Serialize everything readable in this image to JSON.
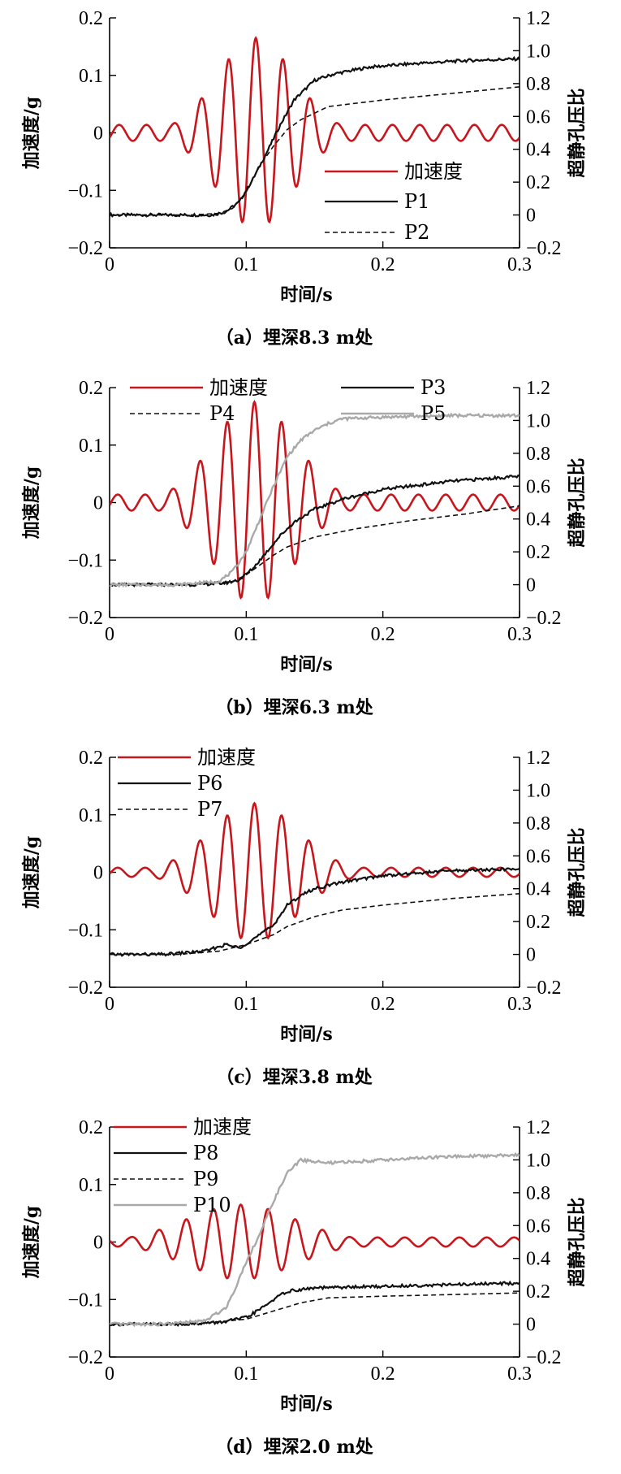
{
  "colors": {
    "acceleration": "#c8161d",
    "solid": "#111111",
    "dashed": "#111111",
    "gray": "#a9a9a9"
  },
  "chart_data": [
    {
      "type": "line",
      "caption": "（a）埋深8.3 m处",
      "xlabel": "时间/s",
      "ylabel_left": "加速度/g",
      "ylabel_right": "超静孔压比",
      "xlim": [
        0,
        0.3
      ],
      "ylim_left": [
        -0.2,
        0.2
      ],
      "ylim_right": [
        -0.2,
        1.2
      ],
      "x_ticks": [
        "0",
        "0.1",
        "0.2",
        "0.3"
      ],
      "y_left_ticks": [
        "0.2",
        "0.1",
        "0",
        "-0.1",
        "-0.2"
      ],
      "y_right_ticks": [
        "1.2",
        "1.0",
        "0.8",
        "0.6",
        "0.4",
        "0.2",
        "0",
        "-0.2"
      ],
      "acceleration": {
        "name": "加速度",
        "peak": 0.165,
        "peak_time": 0.107,
        "freq": 50,
        "sigma": 0.028,
        "baseline": 0.014,
        "side": "left"
      },
      "series": [
        {
          "name": "P1",
          "style": "solid",
          "side": "right",
          "x": [
            0,
            0.05,
            0.075,
            0.085,
            0.095,
            0.105,
            0.115,
            0.125,
            0.135,
            0.145,
            0.15,
            0.165,
            0.19,
            0.22,
            0.26,
            0.3
          ],
          "y": [
            0,
            0,
            0,
            0.02,
            0.08,
            0.22,
            0.38,
            0.55,
            0.7,
            0.78,
            0.82,
            0.86,
            0.9,
            0.92,
            0.94,
            0.95
          ]
        },
        {
          "name": "P2",
          "style": "dashed",
          "side": "right",
          "x": [
            0,
            0.06,
            0.08,
            0.09,
            0.1,
            0.11,
            0.12,
            0.13,
            0.14,
            0.15,
            0.16,
            0.2,
            0.25,
            0.3
          ],
          "y": [
            0,
            0,
            0.01,
            0.04,
            0.14,
            0.3,
            0.42,
            0.52,
            0.58,
            0.62,
            0.66,
            0.7,
            0.74,
            0.78
          ]
        }
      ],
      "legend": [
        {
          "name": "加速度",
          "style": "accel"
        },
        {
          "name": "P1",
          "style": "solid"
        },
        {
          "name": "P2",
          "style": "dashed"
        }
      ]
    },
    {
      "type": "line",
      "caption": "（b）埋深6.3 m处",
      "xlabel": "时间/s",
      "ylabel_left": "加速度/g",
      "ylabel_right": "超静孔压比",
      "xlim": [
        0,
        0.3
      ],
      "ylim_left": [
        -0.2,
        0.2
      ],
      "ylim_right": [
        -0.2,
        1.2
      ],
      "x_ticks": [
        "0",
        "0.1",
        "0.2",
        "0.3"
      ],
      "y_left_ticks": [
        "0.2",
        "0.1",
        "0",
        "-0.1",
        "-0.2"
      ],
      "y_right_ticks": [
        "1.2",
        "1.0",
        "0.8",
        "0.6",
        "0.4",
        "0.2",
        "0",
        "-0.2"
      ],
      "acceleration": {
        "name": "加速度",
        "peak": 0.175,
        "peak_time": 0.106,
        "freq": 50,
        "sigma": 0.03,
        "baseline": 0.014,
        "side": "left"
      },
      "series": [
        {
          "name": "P3",
          "style": "solid",
          "side": "right",
          "x": [
            0,
            0.06,
            0.085,
            0.095,
            0.105,
            0.115,
            0.125,
            0.135,
            0.15,
            0.17,
            0.2,
            0.25,
            0.3
          ],
          "y": [
            0,
            0,
            0.01,
            0.03,
            0.1,
            0.2,
            0.3,
            0.38,
            0.46,
            0.52,
            0.58,
            0.63,
            0.66
          ]
        },
        {
          "name": "P4",
          "style": "dashed",
          "side": "right",
          "x": [
            0,
            0.06,
            0.09,
            0.1,
            0.11,
            0.12,
            0.13,
            0.15,
            0.18,
            0.22,
            0.26,
            0.3
          ],
          "y": [
            0,
            0,
            0.02,
            0.06,
            0.12,
            0.18,
            0.23,
            0.29,
            0.34,
            0.39,
            0.43,
            0.48
          ]
        },
        {
          "name": "P5",
          "style": "gray",
          "side": "right",
          "x": [
            0,
            0.05,
            0.08,
            0.09,
            0.1,
            0.11,
            0.12,
            0.13,
            0.14,
            0.15,
            0.16,
            0.17,
            0.2,
            0.25,
            0.3
          ],
          "y": [
            0,
            0,
            0.02,
            0.08,
            0.2,
            0.4,
            0.6,
            0.78,
            0.88,
            0.94,
            0.98,
            1.01,
            1.02,
            1.03,
            1.03
          ]
        }
      ],
      "legend": [
        {
          "name": "加速度",
          "style": "accel"
        },
        {
          "name": "P3",
          "style": "solid"
        },
        {
          "name": "P4",
          "style": "dashed"
        },
        {
          "name": "P5",
          "style": "gray"
        }
      ]
    },
    {
      "type": "line",
      "caption": "（c）埋深3.8 m处",
      "xlabel": "时间/s",
      "ylabel_left": "加速度/g",
      "ylabel_right": "超静孔压比",
      "xlim": [
        0,
        0.3
      ],
      "ylim_left": [
        -0.2,
        0.2
      ],
      "ylim_right": [
        -0.2,
        1.2
      ],
      "x_ticks": [
        "0",
        "0.1",
        "0.2",
        "0.3"
      ],
      "y_left_ticks": [
        "0.2",
        "0.1",
        "0",
        "-0.1",
        "-0.2"
      ],
      "y_right_ticks": [
        "1.2",
        "1.0",
        "0.8",
        "0.6",
        "0.4",
        "0.2",
        "0",
        "-0.2"
      ],
      "acceleration": {
        "name": "加速度",
        "peak": 0.12,
        "peak_time": 0.106,
        "freq": 50,
        "sigma": 0.032,
        "baseline": 0.008,
        "side": "left"
      },
      "series": [
        {
          "name": "P6",
          "style": "solid",
          "side": "right",
          "x": [
            0,
            0.04,
            0.07,
            0.085,
            0.095,
            0.11,
            0.12,
            0.13,
            0.14,
            0.15,
            0.17,
            0.2,
            0.25,
            0.3
          ],
          "y": [
            0,
            0,
            0.02,
            0.06,
            0.04,
            0.12,
            0.18,
            0.3,
            0.36,
            0.4,
            0.44,
            0.48,
            0.51,
            0.52
          ]
        },
        {
          "name": "P7",
          "style": "dashed",
          "side": "right",
          "x": [
            0,
            0.05,
            0.08,
            0.1,
            0.12,
            0.13,
            0.15,
            0.17,
            0.2,
            0.25,
            0.3
          ],
          "y": [
            0,
            0,
            0.02,
            0.06,
            0.12,
            0.17,
            0.23,
            0.27,
            0.3,
            0.34,
            0.37
          ]
        }
      ],
      "legend": [
        {
          "name": "加速度",
          "style": "accel"
        },
        {
          "name": "P6",
          "style": "solid"
        },
        {
          "name": "P7",
          "style": "dashed"
        }
      ]
    },
    {
      "type": "line",
      "caption": "（d）埋深2.0 m处",
      "xlabel": "时间/s",
      "ylabel_left": "加速度/g",
      "ylabel_right": "超静孔压比",
      "xlim": [
        0,
        0.3
      ],
      "ylim_left": [
        -0.2,
        0.2
      ],
      "ylim_right": [
        -0.2,
        1.2
      ],
      "x_ticks": [
        "0",
        "0.1",
        "0.2",
        "0.3"
      ],
      "y_left_ticks": [
        "0.2",
        "0.1",
        "0",
        "-0.1",
        "-0.2"
      ],
      "y_right_ticks": [
        "1.2",
        "1.0",
        "0.8",
        "0.6",
        "0.4",
        "0.2",
        "0",
        "-0.2"
      ],
      "acceleration": {
        "name": "加速度",
        "peak": 0.065,
        "peak_time": 0.096,
        "freq": 50,
        "sigma": 0.04,
        "baseline": 0.008,
        "side": "left"
      },
      "series": [
        {
          "name": "P8",
          "style": "solid",
          "side": "right",
          "x": [
            0,
            0.05,
            0.08,
            0.1,
            0.11,
            0.12,
            0.13,
            0.15,
            0.2,
            0.25,
            0.3
          ],
          "y": [
            0,
            0,
            0.01,
            0.04,
            0.09,
            0.15,
            0.2,
            0.22,
            0.23,
            0.24,
            0.25
          ]
        },
        {
          "name": "P9",
          "style": "dashed",
          "side": "right",
          "x": [
            0,
            0.06,
            0.1,
            0.12,
            0.14,
            0.16,
            0.2,
            0.25,
            0.3
          ],
          "y": [
            0,
            0,
            0.03,
            0.08,
            0.13,
            0.16,
            0.17,
            0.18,
            0.19
          ]
        },
        {
          "name": "P10",
          "style": "gray",
          "side": "right",
          "x": [
            0,
            0.04,
            0.07,
            0.085,
            0.09,
            0.1,
            0.11,
            0.12,
            0.13,
            0.14,
            0.16,
            0.2,
            0.25,
            0.3
          ],
          "y": [
            0,
            0,
            0.02,
            0.1,
            0.18,
            0.38,
            0.55,
            0.75,
            0.92,
            1.0,
            0.98,
            1.0,
            1.02,
            1.03
          ]
        }
      ],
      "legend": [
        {
          "name": "加速度",
          "style": "accel"
        },
        {
          "name": "P8",
          "style": "solid"
        },
        {
          "name": "P9",
          "style": "dashed"
        },
        {
          "name": "P10",
          "style": "gray"
        }
      ]
    }
  ]
}
